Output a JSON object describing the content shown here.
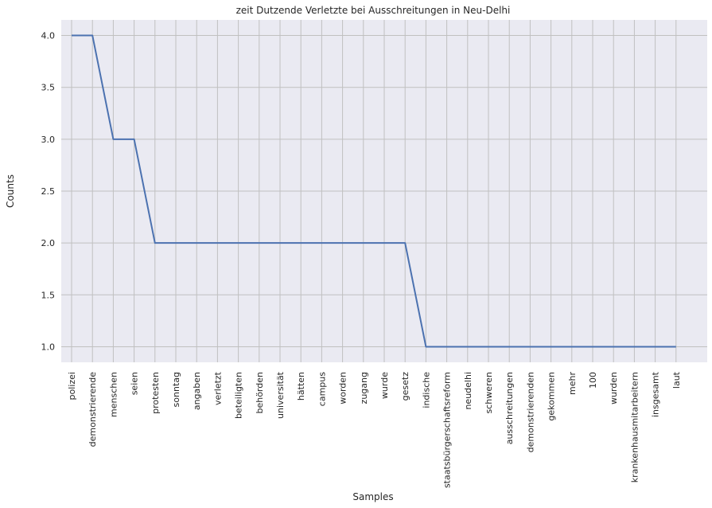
{
  "chart_data": {
    "type": "line",
    "title": "zeit Dutzende Verletzte bei Ausschreitungen in Neu-Delhi",
    "xlabel": "Samples",
    "ylabel": "Counts",
    "categories": [
      "polizei",
      "demonstrierende",
      "menschen",
      "seien",
      "protesten",
      "sonntag",
      "angaben",
      "verletzt",
      "beteiligten",
      "behörden",
      "universität",
      "hätten",
      "campus",
      "worden",
      "zugang",
      "wurde",
      "gesetz",
      "indische",
      "staatsbürgerschaftsreform",
      "neudelhi",
      "schweren",
      "ausschreitungen",
      "demonstrierenden",
      "gekommen",
      "mehr",
      "100",
      "wurden",
      "krankenhausmitarbeitern",
      "insgesamt",
      "laut"
    ],
    "series": [
      {
        "values": [
          4,
          4,
          3,
          3,
          2,
          2,
          2,
          2,
          2,
          2,
          2,
          2,
          2,
          2,
          2,
          2,
          2,
          1,
          1,
          1,
          1,
          1,
          1,
          1,
          1,
          1,
          1,
          1,
          1,
          1
        ]
      }
    ],
    "ylim": [
      0.85,
      4.15
    ],
    "yticks": [
      1.0,
      1.5,
      2.0,
      2.5,
      3.0,
      3.5,
      4.0
    ],
    "ytick_labels": [
      "1.0",
      "1.5",
      "2.0",
      "2.5",
      "3.0",
      "3.5",
      "4.0"
    ],
    "grid": true,
    "colors": {
      "background": "#eaeaf2",
      "grid": "#c0c0c0",
      "line": "#4c72b0"
    }
  }
}
